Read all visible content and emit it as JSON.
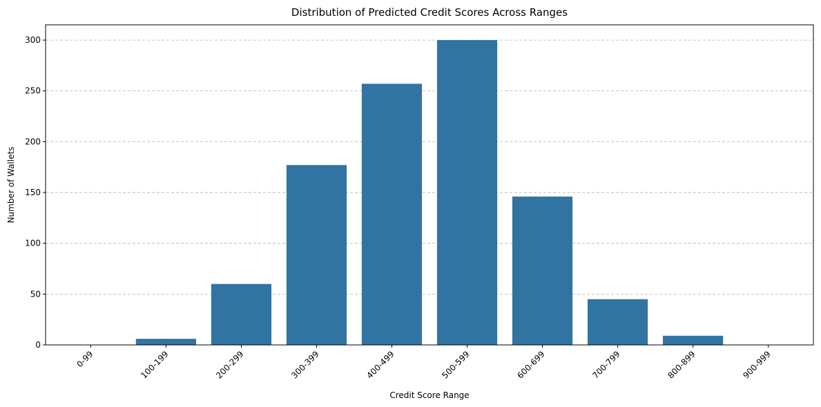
{
  "chart_data": {
    "type": "bar",
    "title": "Distribution of Predicted Credit Scores Across Ranges",
    "xlabel": "Credit Score Range",
    "ylabel": "Number of Wallets",
    "categories": [
      "0-99",
      "100-199",
      "200-299",
      "300-399",
      "400-499",
      "500-599",
      "600-699",
      "700-799",
      "800-899",
      "900-999"
    ],
    "values": [
      0,
      6,
      60,
      177,
      257,
      300,
      146,
      45,
      9,
      0
    ],
    "ylim": [
      0,
      315
    ],
    "yticks": [
      0,
      50,
      100,
      150,
      200,
      250,
      300
    ],
    "grid": "y-dashed",
    "bar_color": "#3274a1",
    "x_tick_rotation": "45"
  }
}
